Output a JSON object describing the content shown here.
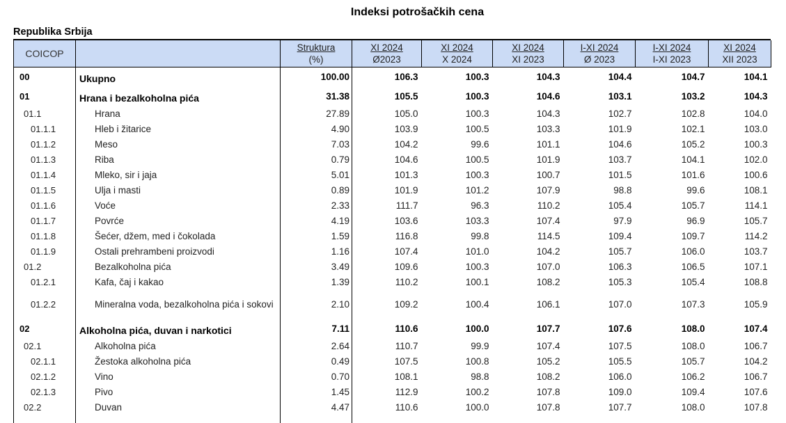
{
  "title": "Indeksi potrošačkih cena",
  "region_label": "Republika Srbija",
  "colors": {
    "header_bg": "#cbdbf5",
    "border": "#000000",
    "text": "#222222"
  },
  "table": {
    "coicop_header": "COICOP",
    "columns": [
      {
        "top": "Struktura",
        "bottom": "(%)"
      },
      {
        "top": "XI 2024",
        "bottom": "Ø2023"
      },
      {
        "top": "XI 2024",
        "bottom": "X 2024"
      },
      {
        "top": "XI 2024",
        "bottom": "XI 2023"
      },
      {
        "top": "I-XI 2024",
        "bottom": "Ø 2023"
      },
      {
        "top": "I-XI 2024",
        "bottom": "I-XI 2023"
      },
      {
        "top": "XI 2024",
        "bottom": "XII 2023"
      }
    ],
    "rows": [
      {
        "code": "00",
        "name": "Ukupno",
        "level": 1,
        "bold": true,
        "wrap": false,
        "weight": "100.00",
        "indices": [
          "106.3",
          "100.3",
          "104.3",
          "104.4",
          "104.7",
          "104.1"
        ]
      },
      {
        "code": "01",
        "name": "Hrana i bezalkoholna pića",
        "level": 1,
        "bold": true,
        "wrap": false,
        "weight": "31.38",
        "indices": [
          "105.5",
          "100.3",
          "104.6",
          "103.1",
          "103.2",
          "104.3"
        ]
      },
      {
        "code": "01.1",
        "name": "Hrana",
        "level": 2,
        "bold": false,
        "wrap": false,
        "weight": "27.89",
        "indices": [
          "105.0",
          "100.3",
          "104.3",
          "102.7",
          "102.8",
          "104.0"
        ]
      },
      {
        "code": "01.1.1",
        "name": "Hleb i žitarice",
        "level": 3,
        "bold": false,
        "wrap": false,
        "weight": "4.90",
        "indices": [
          "103.9",
          "100.5",
          "103.3",
          "101.9",
          "102.1",
          "103.0"
        ]
      },
      {
        "code": "01.1.2",
        "name": "Meso",
        "level": 3,
        "bold": false,
        "wrap": false,
        "weight": "7.03",
        "indices": [
          "104.2",
          "99.6",
          "101.1",
          "104.6",
          "105.2",
          "100.3"
        ]
      },
      {
        "code": "01.1.3",
        "name": "Riba",
        "level": 3,
        "bold": false,
        "wrap": false,
        "weight": "0.79",
        "indices": [
          "104.6",
          "100.5",
          "101.9",
          "103.7",
          "104.1",
          "102.0"
        ]
      },
      {
        "code": "01.1.4",
        "name": "Mleko, sir i jaja",
        "level": 3,
        "bold": false,
        "wrap": false,
        "weight": "5.01",
        "indices": [
          "101.3",
          "100.3",
          "100.7",
          "101.5",
          "101.6",
          "100.6"
        ]
      },
      {
        "code": "01.1.5",
        "name": "Ulja i masti",
        "level": 3,
        "bold": false,
        "wrap": false,
        "weight": "0.89",
        "indices": [
          "101.9",
          "101.2",
          "107.9",
          "98.8",
          "99.6",
          "108.1"
        ]
      },
      {
        "code": "01.1.6",
        "name": "Voće",
        "level": 3,
        "bold": false,
        "wrap": false,
        "weight": "2.33",
        "indices": [
          "111.7",
          "96.3",
          "110.2",
          "105.4",
          "105.7",
          "114.1"
        ]
      },
      {
        "code": "01.1.7",
        "name": "Povrće",
        "level": 3,
        "bold": false,
        "wrap": false,
        "weight": "4.19",
        "indices": [
          "103.6",
          "103.3",
          "107.4",
          "97.9",
          "96.9",
          "105.7"
        ]
      },
      {
        "code": "01.1.8",
        "name": "Šećer, džem, med i čokolada",
        "level": 3,
        "bold": false,
        "wrap": false,
        "weight": "1.59",
        "indices": [
          "116.8",
          "99.8",
          "114.5",
          "109.4",
          "109.7",
          "114.2"
        ]
      },
      {
        "code": "01.1.9",
        "name": "Ostali prehrambeni proizvodi",
        "level": 3,
        "bold": false,
        "wrap": false,
        "weight": "1.16",
        "indices": [
          "107.4",
          "101.0",
          "104.2",
          "105.7",
          "106.0",
          "103.7"
        ]
      },
      {
        "code": "01.2",
        "name": "Bezalkoholna pića",
        "level": 2,
        "bold": false,
        "wrap": false,
        "weight": "3.49",
        "indices": [
          "109.6",
          "100.3",
          "107.0",
          "106.3",
          "106.5",
          "107.1"
        ]
      },
      {
        "code": "01.2.1",
        "name": "Kafa, čaj i kakao",
        "level": 3,
        "bold": false,
        "wrap": false,
        "weight": "1.39",
        "indices": [
          "110.2",
          "100.1",
          "108.2",
          "105.3",
          "105.4",
          "108.8"
        ]
      },
      {
        "code": "01.2.2",
        "name": "Mineralna voda, bezalkoholna pića i sokovi",
        "level": 3,
        "bold": false,
        "wrap": true,
        "weight": "2.10",
        "indices": [
          "109.2",
          "100.4",
          "106.1",
          "107.0",
          "107.3",
          "105.9"
        ]
      },
      {
        "code": "02",
        "name": "Alkoholna pića, duvan i narkotici",
        "level": 1,
        "bold": true,
        "wrap": false,
        "weight": "7.11",
        "indices": [
          "110.6",
          "100.0",
          "107.7",
          "107.6",
          "108.0",
          "107.4"
        ]
      },
      {
        "code": "02.1",
        "name": "Alkoholna pića",
        "level": 2,
        "bold": false,
        "wrap": false,
        "weight": "2.64",
        "indices": [
          "110.7",
          "99.9",
          "107.4",
          "107.5",
          "108.0",
          "106.7"
        ]
      },
      {
        "code": "02.1.1",
        "name": "Žestoka alkoholna pića",
        "level": 3,
        "bold": false,
        "wrap": false,
        "weight": "0.49",
        "indices": [
          "107.5",
          "100.8",
          "105.2",
          "105.5",
          "105.7",
          "104.2"
        ]
      },
      {
        "code": "02.1.2",
        "name": "Vino",
        "level": 3,
        "bold": false,
        "wrap": false,
        "weight": "0.70",
        "indices": [
          "108.1",
          "98.8",
          "108.2",
          "106.0",
          "106.2",
          "106.7"
        ]
      },
      {
        "code": "02.1.3",
        "name": "Pivo",
        "level": 3,
        "bold": false,
        "wrap": false,
        "weight": "1.45",
        "indices": [
          "112.9",
          "100.2",
          "107.8",
          "109.0",
          "109.4",
          "107.6"
        ]
      },
      {
        "code": "02.2",
        "name": "Duvan",
        "level": 2,
        "bold": false,
        "wrap": false,
        "weight": "4.47",
        "indices": [
          "110.6",
          "100.0",
          "107.8",
          "107.7",
          "108.0",
          "107.8"
        ]
      }
    ]
  }
}
